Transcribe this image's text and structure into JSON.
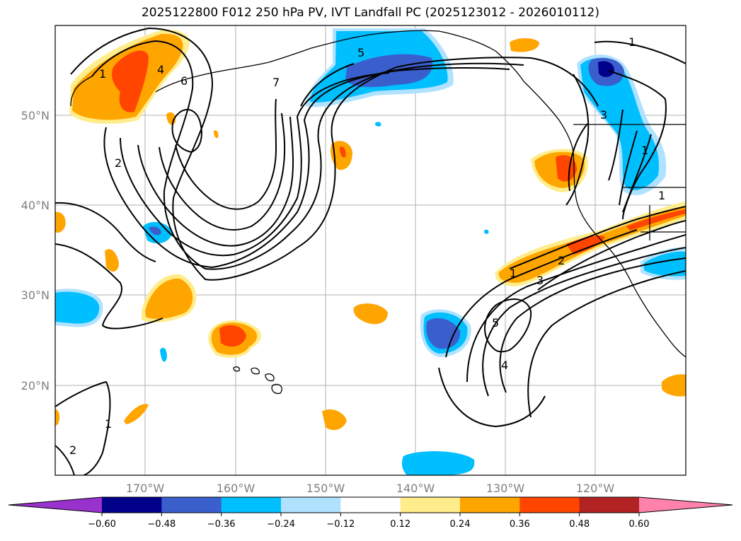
{
  "title": "2025122800 F012 250 hPa PV, IVT Landfall PC (2025123012 - 2026010112)",
  "lat_labels": [
    "50°N",
    "40°N",
    "30°N",
    "20°N"
  ],
  "lon_labels": [
    "170°W",
    "160°W",
    "150°W",
    "140°W",
    "130°W",
    "120°W"
  ],
  "colorbar": {
    "ticks": [
      "−0.60",
      "−0.48",
      "−0.36",
      "−0.24",
      "−0.12",
      "0.12",
      "0.24",
      "0.36",
      "0.48",
      "0.60"
    ],
    "colors": [
      "#9932cc",
      "#00008b",
      "#3a5fcd",
      "#00bfff",
      "#b0e2ff",
      "#ffffff",
      "#ffec8b",
      "#ffa500",
      "#ff4500",
      "#b22222",
      "#ff82ab"
    ]
  },
  "contour_labels": [
    "1",
    "2",
    "4",
    "6",
    "7",
    "5",
    "1",
    "3",
    "1",
    "1",
    "1",
    "2",
    "3",
    "5",
    "4",
    "1",
    "2"
  ]
}
